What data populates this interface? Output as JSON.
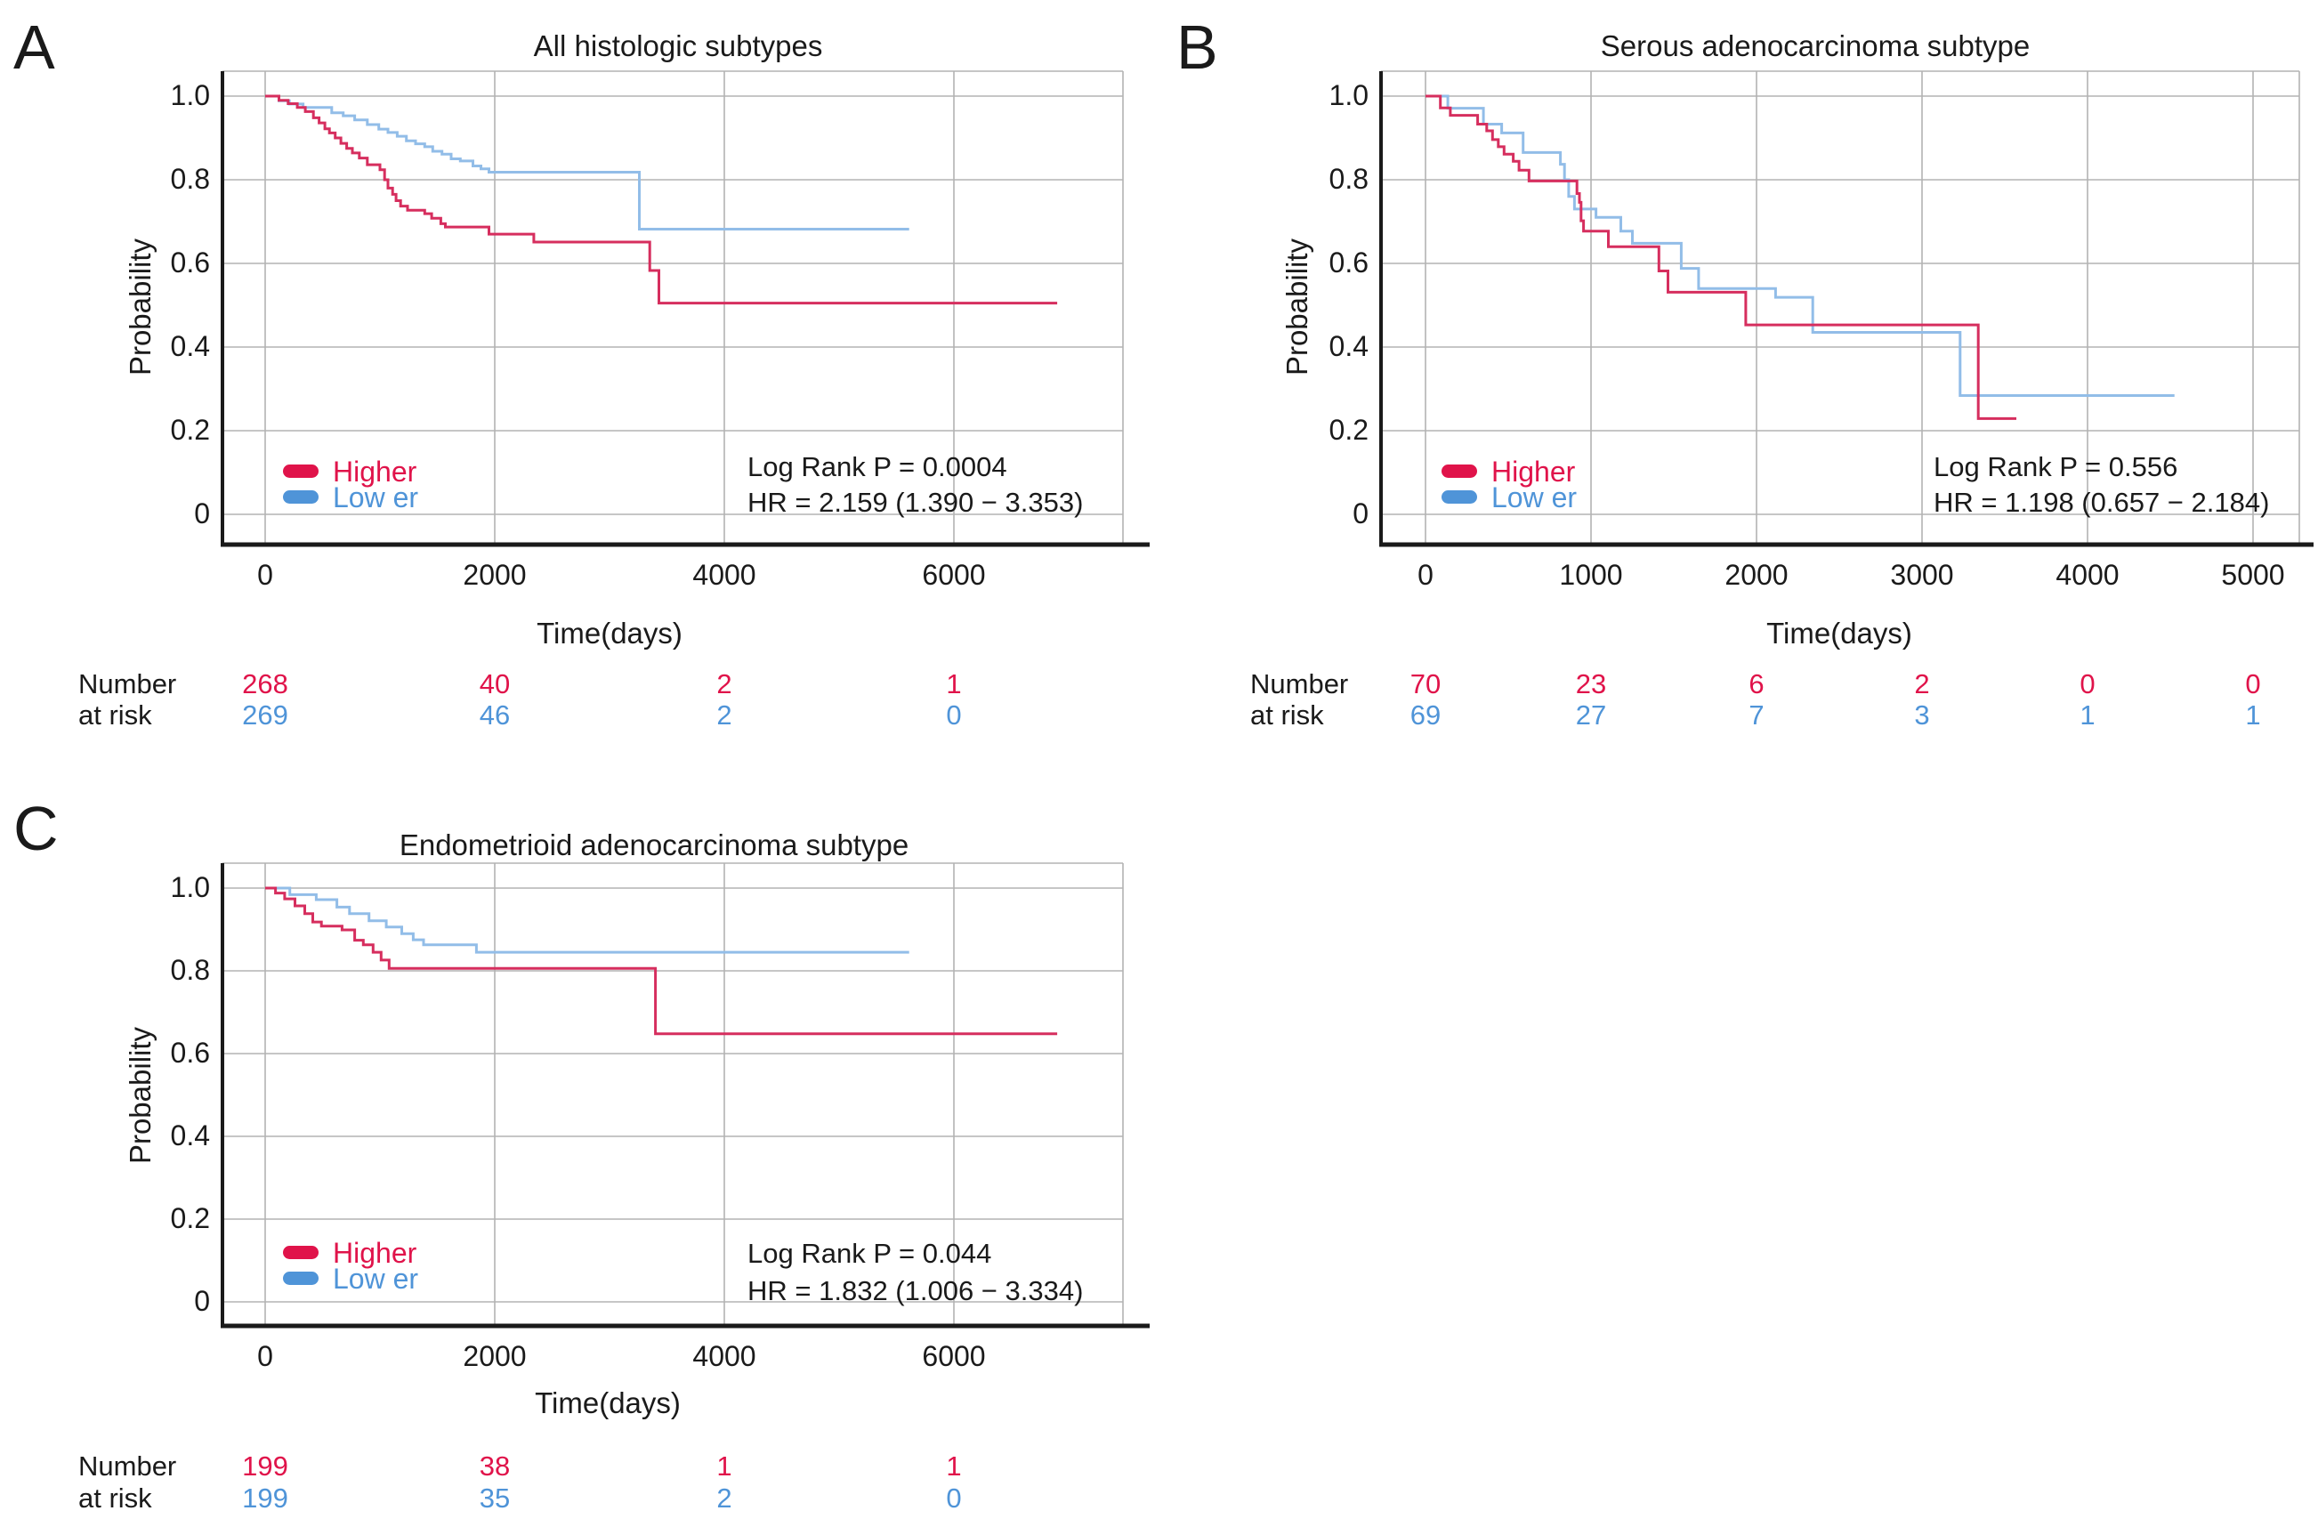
{
  "figure_type": "Kaplan-Meier survival analysis figure",
  "colors": {
    "higher_accent": "#e0134a",
    "lower_accent": "#4f94d8",
    "higher_curve": "#d62e5e",
    "lower_curve": "#92bde8",
    "grid": "#b3b3b3",
    "axis": "#1a1a1a",
    "text": "#1a1a1a"
  },
  "chart_data": [
    {
      "type": "line",
      "subtype": "kaplan-meier-step",
      "panel_label": "A",
      "title": "All histologic subtypes",
      "xlabel": "Time(days)",
      "ylabel": "Probability",
      "x_ticks": [
        0,
        2000,
        4000,
        6000
      ],
      "x_tick_labels": [
        "0",
        "2000",
        "4000",
        "6000"
      ],
      "y_ticks": [
        1.0,
        0.8,
        0.6,
        0.4,
        0.2,
        0
      ],
      "y_tick_labels": [
        "1.0",
        "0.8",
        "0.6",
        "0.4",
        "0.2",
        "0"
      ],
      "xlim": [
        0,
        7470
      ],
      "ylim": [
        0,
        1.06
      ],
      "grid": true,
      "legend_position": "lower-left",
      "legend": [
        {
          "label": "Higher",
          "color": "#e0134a"
        },
        {
          "label": "Low er",
          "color": "#4f94d8"
        }
      ],
      "annotations": [
        "Log Rank P = 0.0004",
        "HR = 2.159 (1.390 − 3.353)"
      ],
      "series": [
        {
          "name": "Higher",
          "color": "#d62e5e",
          "points": [
            [
              0,
              1
            ],
            [
              120,
              0.99
            ],
            [
              200,
              0.982
            ],
            [
              280,
              0.973
            ],
            [
              350,
              0.963
            ],
            [
              420,
              0.948
            ],
            [
              470,
              0.936
            ],
            [
              520,
              0.922
            ],
            [
              560,
              0.912
            ],
            [
              610,
              0.9
            ],
            [
              660,
              0.887
            ],
            [
              710,
              0.875
            ],
            [
              760,
              0.864
            ],
            [
              820,
              0.852
            ],
            [
              890,
              0.836
            ],
            [
              1000,
              0.824
            ],
            [
              1040,
              0.8
            ],
            [
              1070,
              0.78
            ],
            [
              1110,
              0.765
            ],
            [
              1140,
              0.75
            ],
            [
              1180,
              0.737
            ],
            [
              1240,
              0.727
            ],
            [
              1390,
              0.719
            ],
            [
              1450,
              0.708
            ],
            [
              1530,
              0.695
            ],
            [
              1570,
              0.687
            ],
            [
              1950,
              0.67
            ],
            [
              2340,
              0.651
            ],
            [
              3350,
              0.583
            ],
            [
              3430,
              0.505
            ],
            [
              6900,
              0.505
            ]
          ]
        },
        {
          "name": "Low er",
          "color": "#92bde8",
          "points": [
            [
              0,
              1
            ],
            [
              120,
              0.989
            ],
            [
              210,
              0.981
            ],
            [
              330,
              0.973
            ],
            [
              580,
              0.96
            ],
            [
              680,
              0.953
            ],
            [
              780,
              0.943
            ],
            [
              890,
              0.932
            ],
            [
              990,
              0.921
            ],
            [
              1070,
              0.913
            ],
            [
              1150,
              0.904
            ],
            [
              1230,
              0.893
            ],
            [
              1310,
              0.886
            ],
            [
              1390,
              0.879
            ],
            [
              1460,
              0.868
            ],
            [
              1540,
              0.861
            ],
            [
              1620,
              0.85
            ],
            [
              1700,
              0.845
            ],
            [
              1810,
              0.833
            ],
            [
              1880,
              0.826
            ],
            [
              1950,
              0.818
            ],
            [
              3260,
              0.682
            ],
            [
              5610,
              0.682
            ]
          ]
        }
      ],
      "risk_table": {
        "row_label_lines": [
          "Number",
          "at risk"
        ],
        "times": [
          0,
          2000,
          4000,
          6000
        ],
        "rows": [
          {
            "group": "Higher",
            "color": "#e0134a",
            "values": [
              "268",
              "40",
              "2",
              "1"
            ]
          },
          {
            "group": "Low er",
            "color": "#4f94d8",
            "values": [
              "269",
              "46",
              "2",
              "0"
            ]
          }
        ]
      }
    },
    {
      "type": "line",
      "subtype": "kaplan-meier-step",
      "panel_label": "B",
      "title": "Serous adenocarcinoma subtype",
      "xlabel": "Time(days)",
      "ylabel": "Probability",
      "x_ticks": [
        0,
        1000,
        2000,
        3000,
        4000,
        5000
      ],
      "x_tick_labels": [
        "0",
        "1000",
        "2000",
        "3000",
        "4000",
        "5000"
      ],
      "y_ticks": [
        1.0,
        0.8,
        0.6,
        0.4,
        0.2,
        0
      ],
      "y_tick_labels": [
        "1.0",
        "0.8",
        "0.6",
        "0.4",
        "0.2",
        "0"
      ],
      "xlim": [
        0,
        5280
      ],
      "ylim": [
        0,
        1.06
      ],
      "grid": true,
      "legend_position": "lower-left",
      "legend": [
        {
          "label": "Higher",
          "color": "#e0134a"
        },
        {
          "label": "Low er",
          "color": "#4f94d8"
        }
      ],
      "annotations": [
        "Log Rank P = 0.556",
        "HR = 1.198 (0.657 − 2.184)"
      ],
      "series": [
        {
          "name": "Higher",
          "color": "#d62e5e",
          "points": [
            [
              0,
              1
            ],
            [
              90,
              0.972
            ],
            [
              150,
              0.954
            ],
            [
              315,
              0.933
            ],
            [
              370,
              0.917
            ],
            [
              405,
              0.896
            ],
            [
              440,
              0.879
            ],
            [
              475,
              0.861
            ],
            [
              530,
              0.844
            ],
            [
              565,
              0.823
            ],
            [
              625,
              0.797
            ],
            [
              915,
              0.767
            ],
            [
              930,
              0.746
            ],
            [
              940,
              0.702
            ],
            [
              955,
              0.677
            ],
            [
              1105,
              0.64
            ],
            [
              1410,
              0.582
            ],
            [
              1465,
              0.531
            ],
            [
              1935,
              0.453
            ],
            [
              3340,
              0.229
            ],
            [
              3570,
              0.229
            ]
          ]
        },
        {
          "name": "Low er",
          "color": "#92bde8",
          "points": [
            [
              0,
              1
            ],
            [
              135,
              0.971
            ],
            [
              350,
              0.933
            ],
            [
              460,
              0.912
            ],
            [
              590,
              0.865
            ],
            [
              815,
              0.837
            ],
            [
              840,
              0.8
            ],
            [
              865,
              0.76
            ],
            [
              900,
              0.73
            ],
            [
              1030,
              0.71
            ],
            [
              1180,
              0.677
            ],
            [
              1250,
              0.648
            ],
            [
              1545,
              0.588
            ],
            [
              1650,
              0.54
            ],
            [
              2115,
              0.519
            ],
            [
              2340,
              0.435
            ],
            [
              3230,
              0.284
            ],
            [
              4525,
              0.284
            ]
          ]
        }
      ],
      "risk_table": {
        "row_label_lines": [
          "Number",
          "at risk"
        ],
        "times": [
          0,
          1000,
          2000,
          3000,
          4000,
          5000
        ],
        "rows": [
          {
            "group": "Higher",
            "color": "#e0134a",
            "values": [
              "70",
              "23",
              "6",
              "2",
              "0",
              "0"
            ]
          },
          {
            "group": "Low er",
            "color": "#4f94d8",
            "values": [
              "69",
              "27",
              "7",
              "3",
              "1",
              "1"
            ]
          }
        ]
      }
    },
    {
      "type": "line",
      "subtype": "kaplan-meier-step",
      "panel_label": "C",
      "title": "Endometrioid adenocarcinoma subtype",
      "xlabel": "Time(days)",
      "ylabel": "Probability",
      "x_ticks": [
        0,
        2000,
        4000,
        6000
      ],
      "x_tick_labels": [
        "0",
        "2000",
        "4000",
        "6000"
      ],
      "y_ticks": [
        1.0,
        0.8,
        0.6,
        0.4,
        0.2,
        0
      ],
      "y_tick_labels": [
        "1.0",
        "0.8",
        "0.6",
        "0.4",
        "0.2",
        "0"
      ],
      "xlim": [
        0,
        7470
      ],
      "ylim": [
        0,
        1.06
      ],
      "grid": true,
      "legend_position": "lower-left",
      "legend": [
        {
          "label": "Higher",
          "color": "#e0134a"
        },
        {
          "label": "Low er",
          "color": "#4f94d8"
        }
      ],
      "annotations": [
        "Log Rank P = 0.044",
        "HR = 1.832 (1.006 − 3.334)"
      ],
      "series": [
        {
          "name": "Higher",
          "color": "#d62e5e",
          "points": [
            [
              0,
              1
            ],
            [
              90,
              0.988
            ],
            [
              170,
              0.974
            ],
            [
              260,
              0.957
            ],
            [
              345,
              0.938
            ],
            [
              415,
              0.918
            ],
            [
              490,
              0.908
            ],
            [
              670,
              0.899
            ],
            [
              780,
              0.874
            ],
            [
              855,
              0.863
            ],
            [
              940,
              0.845
            ],
            [
              1010,
              0.826
            ],
            [
              1080,
              0.806
            ],
            [
              3400,
              0.648
            ],
            [
              6900,
              0.648
            ]
          ]
        },
        {
          "name": "Low er",
          "color": "#92bde8",
          "points": [
            [
              0,
              1
            ],
            [
              215,
              0.984
            ],
            [
              445,
              0.972
            ],
            [
              625,
              0.954
            ],
            [
              735,
              0.938
            ],
            [
              905,
              0.921
            ],
            [
              1055,
              0.906
            ],
            [
              1190,
              0.89
            ],
            [
              1290,
              0.875
            ],
            [
              1380,
              0.863
            ],
            [
              1840,
              0.845
            ],
            [
              5610,
              0.845
            ]
          ]
        }
      ],
      "risk_table": {
        "row_label_lines": [
          "Number",
          "at risk"
        ],
        "times": [
          0,
          2000,
          4000,
          6000
        ],
        "rows": [
          {
            "group": "Higher",
            "color": "#e0134a",
            "values": [
              "199",
              "38",
              "1",
              "1"
            ]
          },
          {
            "group": "Low er",
            "color": "#4f94d8",
            "values": [
              "199",
              "35",
              "2",
              "0"
            ]
          }
        ]
      }
    }
  ]
}
